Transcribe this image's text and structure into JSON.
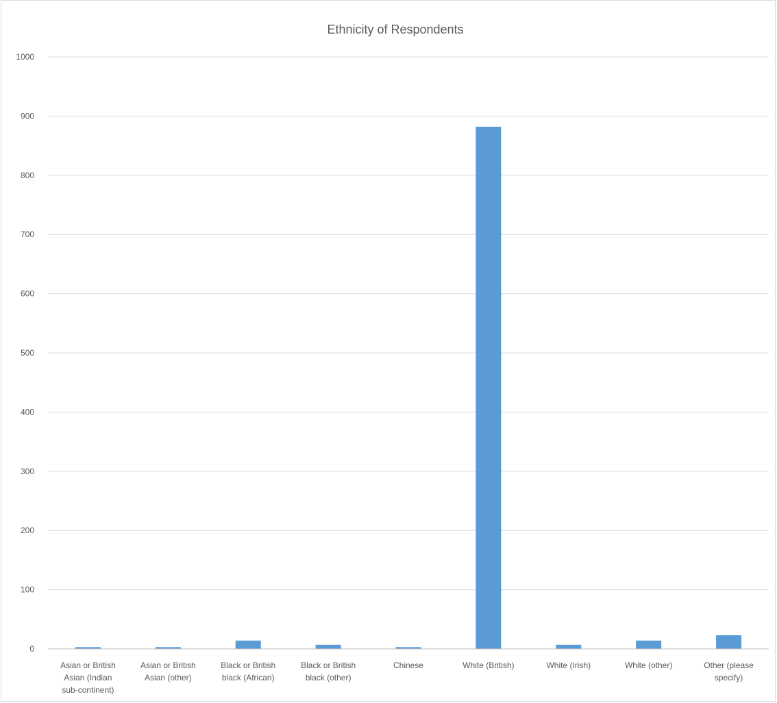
{
  "chart_data": {
    "type": "bar",
    "title": "Ethnicity of Respondents",
    "xlabel": "",
    "ylabel": "",
    "ylim": [
      0,
      1000
    ],
    "yticks": [
      0,
      100,
      200,
      300,
      400,
      500,
      600,
      700,
      800,
      900,
      1000
    ],
    "grid": true,
    "legend": "none",
    "bar_color": "#5b9bd5",
    "categories": [
      [
        "Asian or British",
        "Asian (Indian",
        "sub-continent)"
      ],
      [
        "Asian or British",
        "Asian (other)"
      ],
      [
        "Black or British",
        "black (African)"
      ],
      [
        "Black or British",
        "black (other)"
      ],
      [
        "Chinese"
      ],
      [
        "White (British)"
      ],
      [
        "White (Irish)"
      ],
      [
        "White (other)"
      ],
      [
        "Other (please",
        "specify)"
      ]
    ],
    "values": [
      3,
      3,
      14,
      7,
      3,
      882,
      7,
      14,
      23
    ]
  }
}
